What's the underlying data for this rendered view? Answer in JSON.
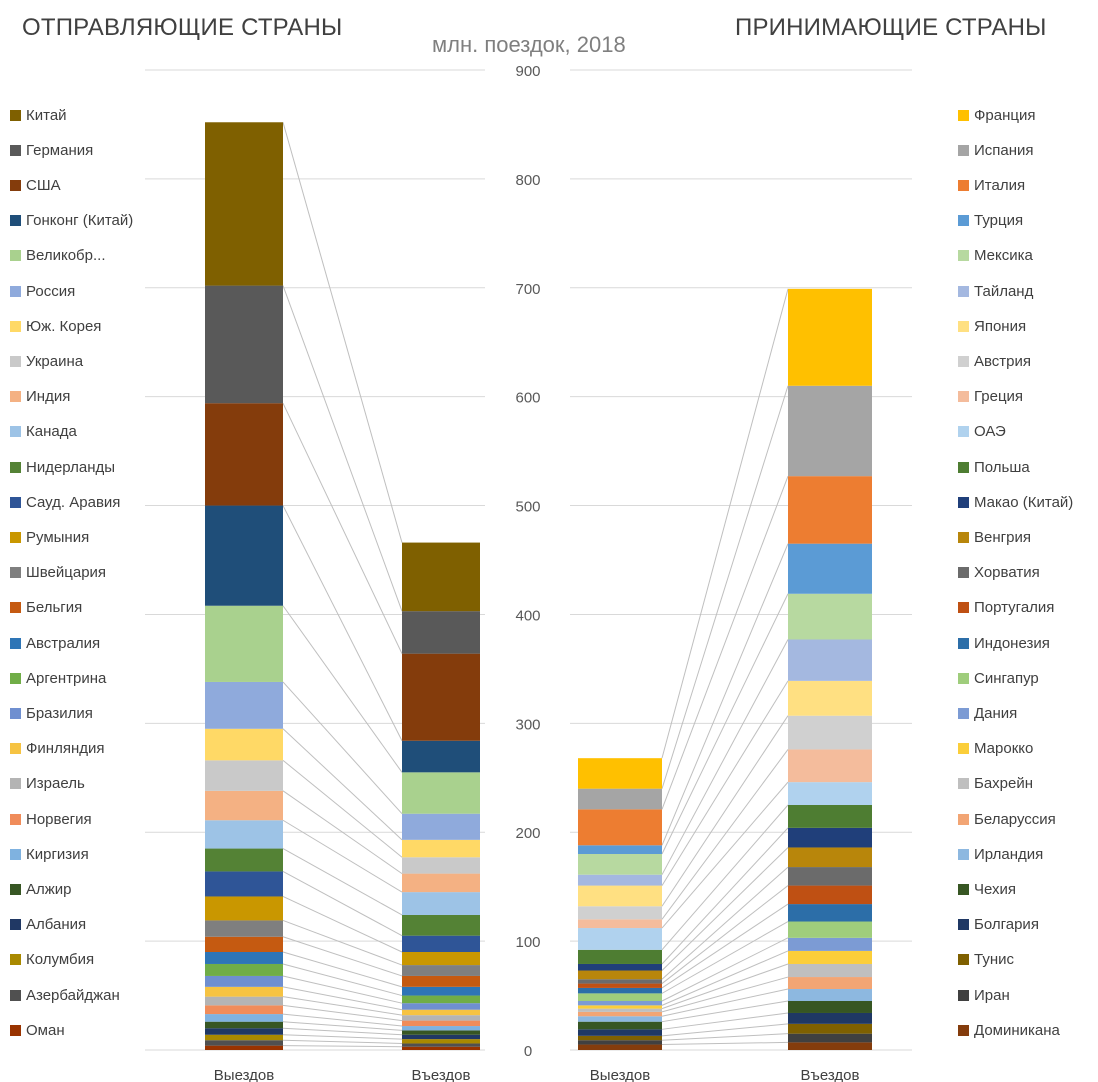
{
  "headings": {
    "left": "ОТПРАВЛЯЮЩИЕ СТРАНЫ",
    "right": "ПРИНИМАЮЩИЕ СТРАНЫ",
    "unit": "млн. поездок, 2018"
  },
  "chart_data": {
    "type": "bar",
    "stacked": true,
    "title": "млн. поездок, 2018",
    "ylim": [
      0,
      900
    ],
    "y_ticks": [
      0,
      100,
      200,
      300,
      400,
      500,
      600,
      700,
      800,
      900
    ],
    "grid": true,
    "panels": [
      {
        "name": "ОТПРАВЛЯЮЩИЕ СТРАНЫ",
        "categories": [
          "Выездов",
          "Въездов"
        ],
        "legend_position": "left",
        "series": [
          {
            "name": "Китай",
            "color": "#7f6000",
            "values": [
              150,
              63
            ]
          },
          {
            "name": "Германия",
            "color": "#595959",
            "values": [
              108,
              39
            ]
          },
          {
            "name": "США",
            "color": "#843c0c",
            "values": [
              94,
              80
            ]
          },
          {
            "name": "Гонконг (Китай)",
            "color": "#1f4e79",
            "values": [
              92,
              29
            ]
          },
          {
            "name": "Великобр...",
            "color": "#a9d18e",
            "values": [
              70,
              38
            ]
          },
          {
            "name": "Россия",
            "color": "#8faadc",
            "values": [
              43,
              24
            ]
          },
          {
            "name": "Юж. Корея",
            "color": "#ffd966",
            "values": [
              29,
              16
            ]
          },
          {
            "name": "Украина",
            "color": "#c9c9c9",
            "values": [
              28,
              15
            ]
          },
          {
            "name": "Индия",
            "color": "#f4b183",
            "values": [
              27,
              17
            ]
          },
          {
            "name": "Канада",
            "color": "#9dc3e6",
            "values": [
              26,
              21
            ]
          },
          {
            "name": "Нидерланды",
            "color": "#548235",
            "values": [
              21,
              19
            ]
          },
          {
            "name": "Сауд. Аравия",
            "color": "#2f5597",
            "values": [
              23,
              15
            ]
          },
          {
            "name": "Румыния",
            "color": "#c99700",
            "values": [
              22,
              12
            ]
          },
          {
            "name": "Швейцария",
            "color": "#7f7f7f",
            "values": [
              15,
              10
            ]
          },
          {
            "name": "Бельгия",
            "color": "#c55a11",
            "values": [
              14,
              10
            ]
          },
          {
            "name": "Австралия",
            "color": "#2e75b6",
            "values": [
              11,
              8
            ]
          },
          {
            "name": "Аргентрина",
            "color": "#70ad47",
            "values": [
              11,
              7
            ]
          },
          {
            "name": "Бразилия",
            "color": "#6f8fd0",
            "values": [
              10,
              6
            ]
          },
          {
            "name": "Финляндия",
            "color": "#f6c342",
            "values": [
              9,
              5
            ]
          },
          {
            "name": "Израель",
            "color": "#b4b4b4",
            "values": [
              8,
              5
            ]
          },
          {
            "name": "Норвегия",
            "color": "#f08c5a",
            "values": [
              8,
              5
            ]
          },
          {
            "name": "Киргизия",
            "color": "#7fb2e0",
            "values": [
              7,
              4
            ]
          },
          {
            "name": "Алжир",
            "color": "#375623",
            "values": [
              6,
              4
            ]
          },
          {
            "name": "Албания",
            "color": "#203864",
            "values": [
              6,
              4
            ]
          },
          {
            "name": "Колумбия",
            "color": "#a98900",
            "values": [
              5,
              4
            ]
          },
          {
            "name": "Азербайджан",
            "color": "#505050",
            "values": [
              5,
              3
            ]
          },
          {
            "name": "Оман",
            "color": "#993300",
            "values": [
              4,
              3
            ]
          }
        ]
      },
      {
        "name": "ПРИНИМАЮЩИЕ СТРАНЫ",
        "categories": [
          "Выездов",
          "Въездов"
        ],
        "legend_position": "right",
        "series": [
          {
            "name": "Франция",
            "color": "#ffc000",
            "values": [
              28,
              89
            ]
          },
          {
            "name": "Испания",
            "color": "#a5a5a5",
            "values": [
              19,
              83
            ]
          },
          {
            "name": "Италия",
            "color": "#ed7d31",
            "values": [
              33,
              62
            ]
          },
          {
            "name": "Турция",
            "color": "#5b9bd5",
            "values": [
              8,
              46
            ]
          },
          {
            "name": "Мексика",
            "color": "#b7d9a0",
            "values": [
              19,
              42
            ]
          },
          {
            "name": "Тайланд",
            "color": "#a4b8e0",
            "values": [
              10,
              38
            ]
          },
          {
            "name": "Япония",
            "color": "#ffe082",
            "values": [
              19,
              32
            ]
          },
          {
            "name": "Австрия",
            "color": "#d0d0d0",
            "values": [
              12,
              31
            ]
          },
          {
            "name": "Греция",
            "color": "#f4bc9c",
            "values": [
              8,
              30
            ]
          },
          {
            "name": "ОАЭ",
            "color": "#b0d2ee",
            "values": [
              20,
              21
            ]
          },
          {
            "name": "Польша",
            "color": "#4e7d32",
            "values": [
              13,
              21
            ]
          },
          {
            "name": "Макао (Китай)",
            "color": "#203f7a",
            "values": [
              6,
              18
            ]
          },
          {
            "name": "Венгрия",
            "color": "#b8860b",
            "values": [
              8,
              18
            ]
          },
          {
            "name": "Хорватия",
            "color": "#6b6b6b",
            "values": [
              4,
              17
            ]
          },
          {
            "name": "Португалия",
            "color": "#bf5013",
            "values": [
              4,
              17
            ]
          },
          {
            "name": "Индонезия",
            "color": "#2c6ea8",
            "values": [
              5,
              16
            ]
          },
          {
            "name": "Сингапур",
            "color": "#9fcd7c",
            "values": [
              7,
              15
            ]
          },
          {
            "name": "Дания",
            "color": "#7c9bd4",
            "values": [
              4,
              12
            ]
          },
          {
            "name": "Марокко",
            "color": "#fbce3a",
            "values": [
              3,
              12
            ]
          },
          {
            "name": "Бахрейн",
            "color": "#bfbfbf",
            "values": [
              3,
              12
            ]
          },
          {
            "name": "Беларуссия",
            "color": "#f2a574",
            "values": [
              4,
              11
            ]
          },
          {
            "name": "Ирландия",
            "color": "#8db8e0",
            "values": [
              5,
              11
            ]
          },
          {
            "name": "Чехия",
            "color": "#375623",
            "values": [
              7,
              11
            ]
          },
          {
            "name": "Болгария",
            "color": "#1f3864",
            "values": [
              6,
              10
            ]
          },
          {
            "name": "Тунис",
            "color": "#7f6000",
            "values": [
              4,
              9
            ]
          },
          {
            "name": "Иран",
            "color": "#404040",
            "values": [
              4,
              8
            ]
          },
          {
            "name": "Доминикана",
            "color": "#843c0c",
            "values": [
              5,
              7
            ]
          }
        ]
      }
    ]
  }
}
